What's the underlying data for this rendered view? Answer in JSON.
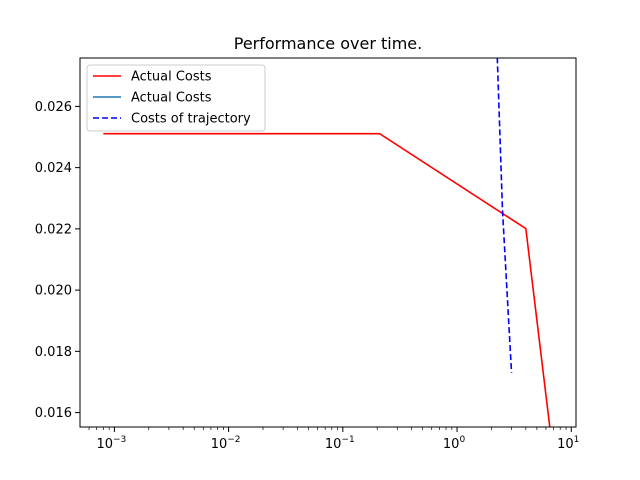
{
  "chart_data": {
    "type": "line",
    "title": "Performance over time.",
    "xlabel": "",
    "ylabel": "",
    "xscale": "log",
    "xlim": [
      0.0005,
      11
    ],
    "ylim": [
      0.01553,
      0.02758
    ],
    "x_ticks": [
      {
        "value": 0.001,
        "base": "10",
        "exp": "−3"
      },
      {
        "value": 0.01,
        "base": "10",
        "exp": "−2"
      },
      {
        "value": 0.1,
        "base": "10",
        "exp": "−1"
      },
      {
        "value": 1,
        "base": "10",
        "exp": "0"
      },
      {
        "value": 10,
        "base": "10",
        "exp": "1"
      }
    ],
    "y_ticks": [
      {
        "value": 0.016,
        "label": "0.016"
      },
      {
        "value": 0.018,
        "label": "0.018"
      },
      {
        "value": 0.02,
        "label": "0.020"
      },
      {
        "value": 0.022,
        "label": "0.022"
      },
      {
        "value": 0.024,
        "label": "0.024"
      },
      {
        "value": 0.026,
        "label": "0.026"
      }
    ],
    "grid": false,
    "legend_position": "upper-left",
    "series": [
      {
        "name": "Actual Costs",
        "color": "#ff0000",
        "style": "solid",
        "x": [
          0.0008,
          0.21,
          4.0,
          6.5
        ],
        "y": [
          0.02511,
          0.02511,
          0.02201,
          0.0155
        ]
      },
      {
        "name": "Actual Costs",
        "color": "#1f77b4",
        "style": "solid",
        "x": [],
        "y": []
      },
      {
        "name": "Costs of trajectory",
        "color": "#0000ff",
        "style": "dashed",
        "x": [
          2.25,
          2.5,
          3.0
        ],
        "y": [
          0.0276,
          0.0226,
          0.0173
        ]
      }
    ]
  }
}
